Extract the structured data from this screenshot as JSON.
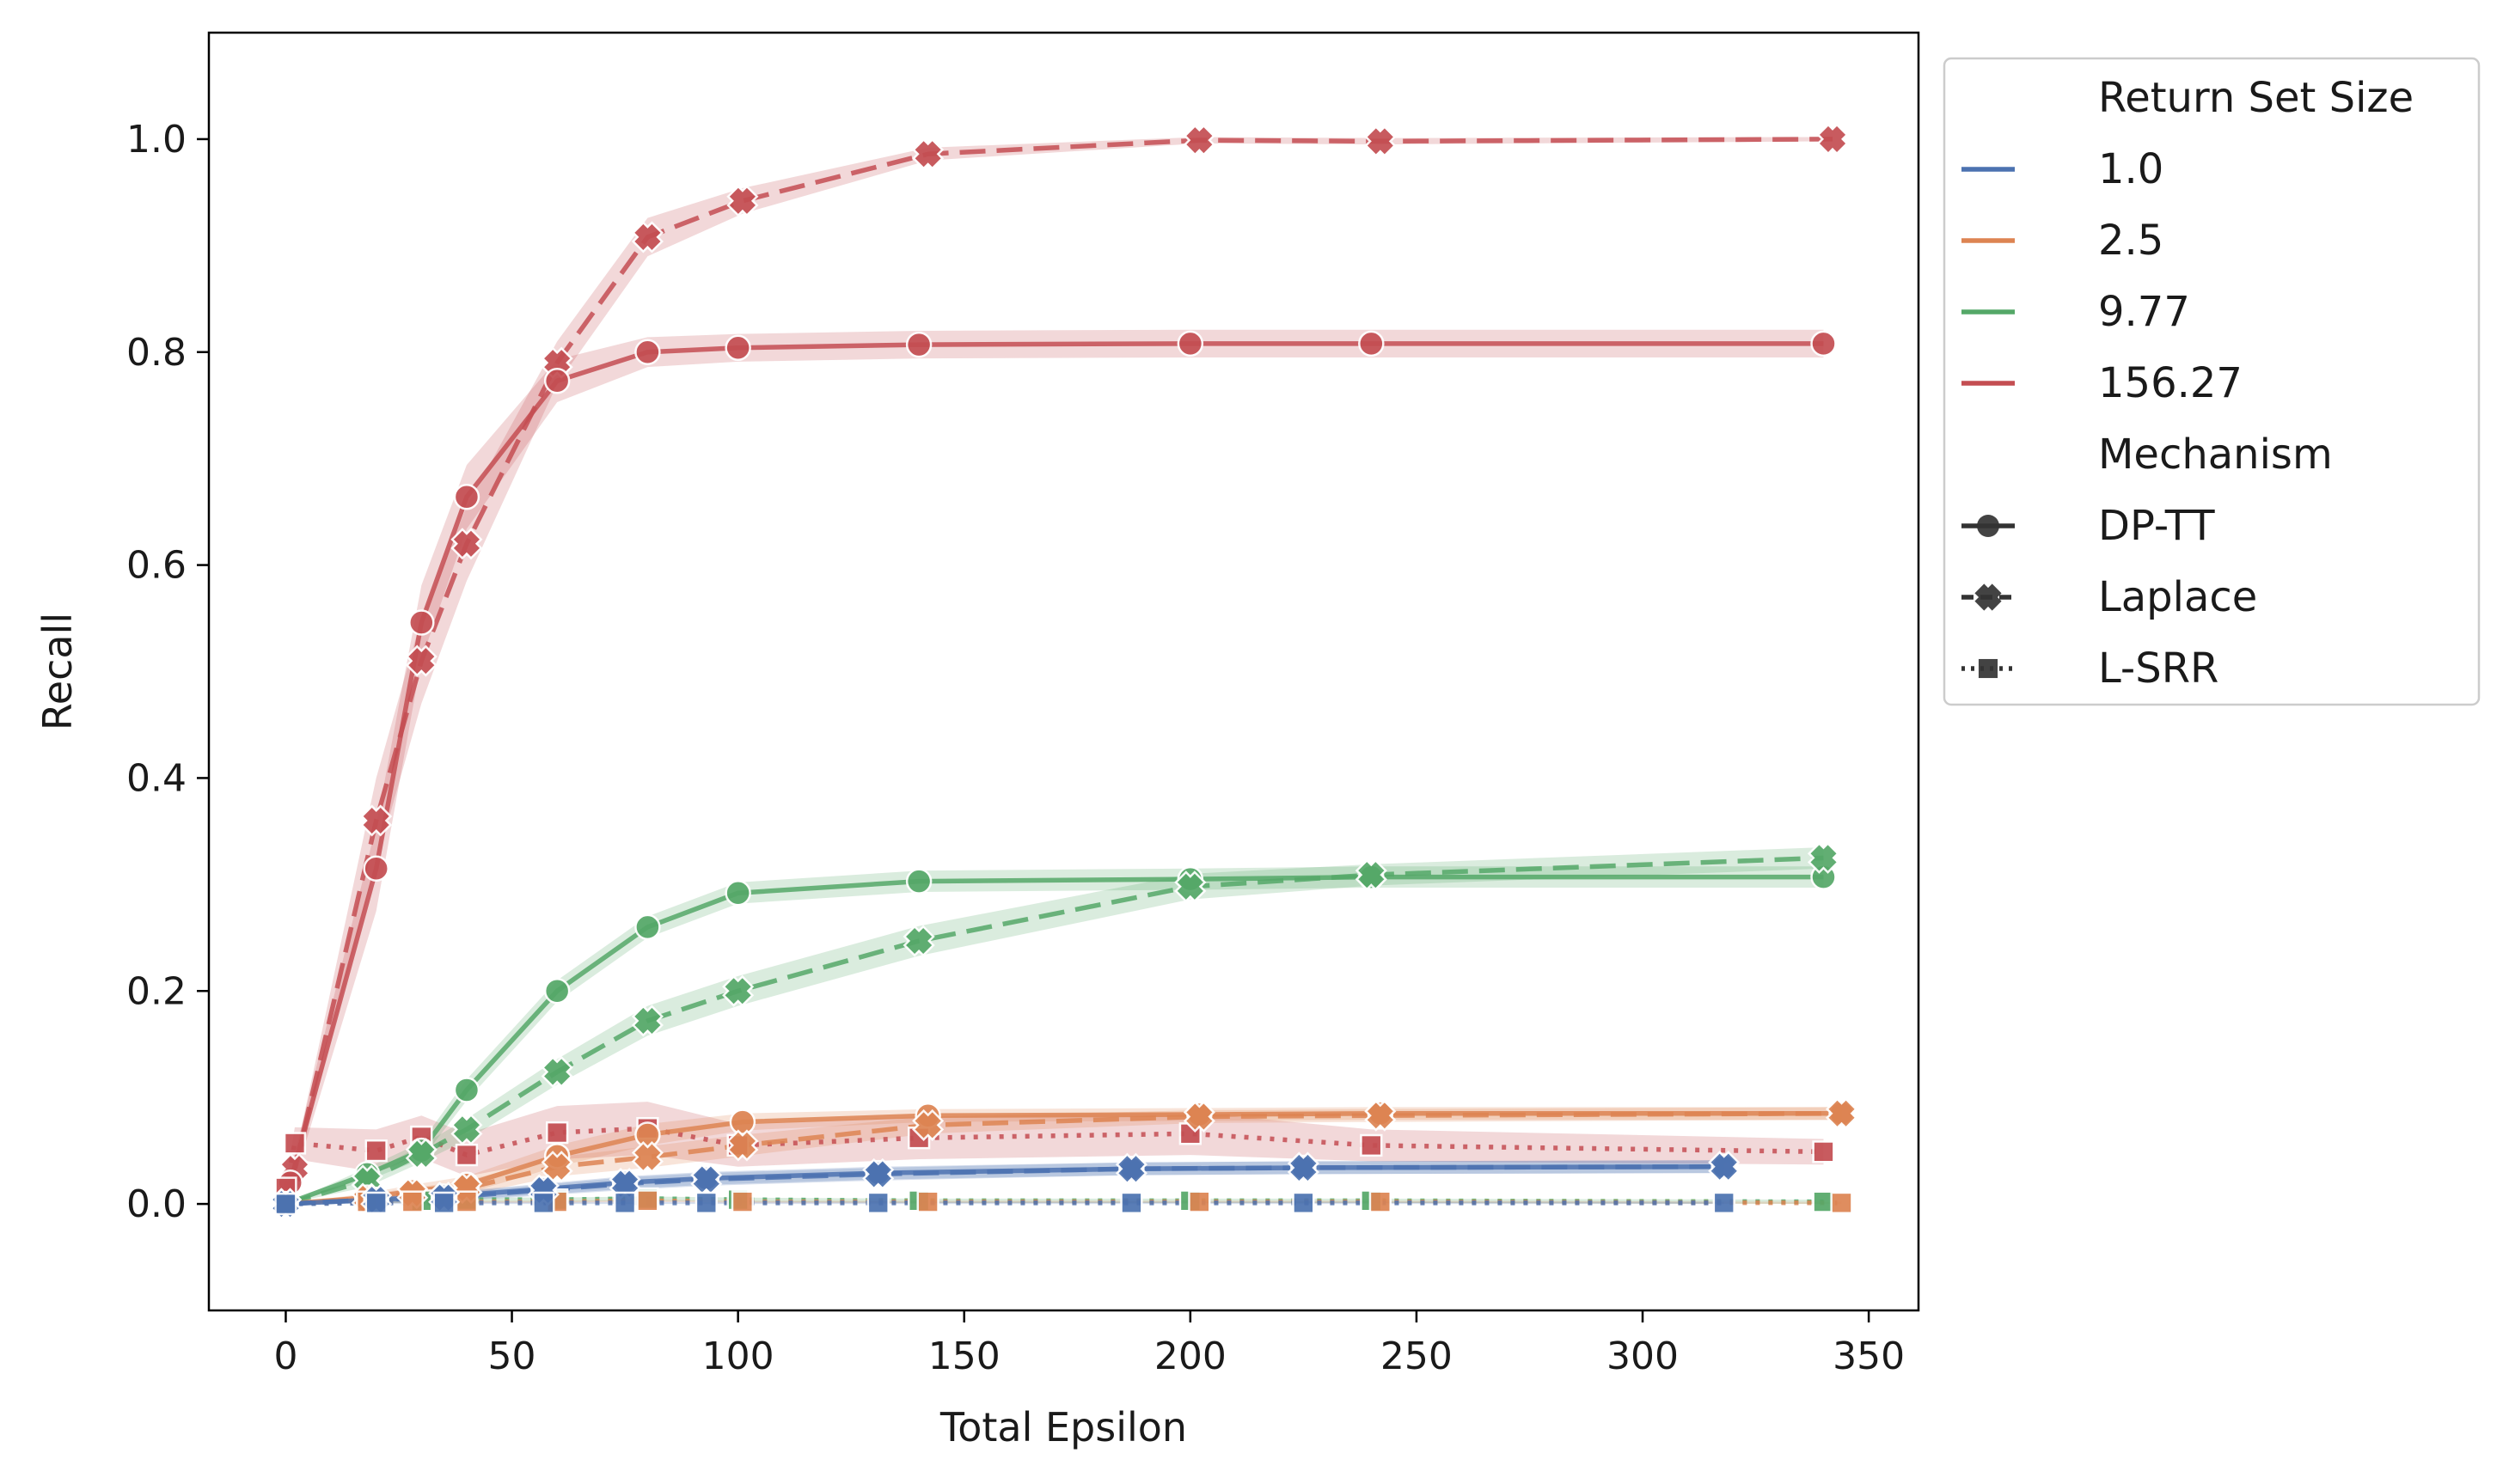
{
  "chart_data": {
    "type": "line",
    "title": "",
    "xlabel": "Total Epsilon",
    "ylabel": "Recall",
    "xlim": [
      -17,
      361
    ],
    "ylim": [
      -0.1,
      1.1
    ],
    "xticks": [
      0,
      50,
      100,
      150,
      200,
      250,
      300,
      350
    ],
    "xtick_labels": [
      "0",
      "50",
      "100",
      "150",
      "200",
      "250",
      "300",
      "350"
    ],
    "yticks": [
      0.0,
      0.2,
      0.4,
      0.6,
      0.8,
      1.0
    ],
    "ytick_labels": [
      "0.0",
      "0.2",
      "0.4",
      "0.6",
      "0.8",
      "1.0"
    ],
    "grid": false,
    "legend": {
      "placement": "outside-right",
      "hue_title": "Return Set Size",
      "style_title": "Mechanism",
      "hue_entries": [
        {
          "label": "1.0",
          "color": "#4c72b0"
        },
        {
          "label": "2.5",
          "color": "#dd8452"
        },
        {
          "label": "9.77",
          "color": "#55a868"
        },
        {
          "label": "156.27",
          "color": "#c44e52"
        }
      ],
      "style_entries": [
        {
          "label": "DP-TT",
          "dash": "solid",
          "marker": "circle"
        },
        {
          "label": "Laplace",
          "dash": "dashed",
          "marker": "x"
        },
        {
          "label": "L-SRR",
          "dash": "dotted",
          "marker": "square"
        }
      ],
      "legend_color": "#333333"
    },
    "series": [
      {
        "size": "156.27",
        "mechanism": "Laplace",
        "color": "#c44e52",
        "x": [
          0,
          2,
          20,
          30,
          40,
          60,
          80,
          101,
          142,
          202,
          242,
          342
        ],
        "y": [
          0.0,
          0.033,
          0.36,
          0.51,
          0.62,
          0.79,
          0.908,
          0.942,
          0.986,
          0.999,
          0.998,
          1.0
        ],
        "band": [
          0.0,
          0.01,
          0.04,
          0.04,
          0.035,
          0.02,
          0.018,
          0.012,
          0.006,
          0.003,
          0.003,
          0.002
        ]
      },
      {
        "size": "156.27",
        "mechanism": "DP-TT",
        "color": "#c44e52",
        "x": [
          1,
          20,
          30,
          40,
          60,
          80,
          100,
          140,
          200,
          240,
          340
        ],
        "y": [
          0.02,
          0.315,
          0.546,
          0.664,
          0.773,
          0.8,
          0.804,
          0.807,
          0.808,
          0.808,
          0.808
        ],
        "band": [
          0.01,
          0.04,
          0.035,
          0.03,
          0.02,
          0.014,
          0.013,
          0.013,
          0.013,
          0.013,
          0.013
        ]
      },
      {
        "size": "156.27",
        "mechanism": "L-SRR",
        "color": "#c44e52",
        "x": [
          0,
          2,
          20,
          30,
          40,
          60,
          80,
          100,
          140,
          200,
          240,
          340
        ],
        "y": [
          0.015,
          0.057,
          0.05,
          0.063,
          0.046,
          0.067,
          0.071,
          0.055,
          0.062,
          0.066,
          0.055,
          0.049
        ],
        "band": [
          0.005,
          0.015,
          0.02,
          0.02,
          0.02,
          0.025,
          0.025,
          0.02,
          0.02,
          0.02,
          0.015,
          0.012
        ]
      },
      {
        "size": "9.77",
        "mechanism": "DP-TT",
        "color": "#55a868",
        "x": [
          0,
          18,
          30,
          40,
          60,
          80,
          100,
          140,
          200,
          240,
          340
        ],
        "y": [
          0.0,
          0.028,
          0.05,
          0.107,
          0.2,
          0.26,
          0.292,
          0.303,
          0.305,
          0.307,
          0.307
        ],
        "band": [
          0.0,
          0.006,
          0.008,
          0.01,
          0.01,
          0.01,
          0.01,
          0.01,
          0.01,
          0.01,
          0.01
        ]
      },
      {
        "size": "9.77",
        "mechanism": "Laplace",
        "color": "#55a868",
        "x": [
          0,
          18,
          30,
          40,
          60,
          80,
          100,
          140,
          200,
          240,
          340
        ],
        "y": [
          0.0,
          0.022,
          0.047,
          0.07,
          0.124,
          0.172,
          0.2,
          0.247,
          0.298,
          0.309,
          0.325
        ],
        "band": [
          0.0,
          0.006,
          0.008,
          0.01,
          0.012,
          0.014,
          0.014,
          0.014,
          0.012,
          0.01,
          0.01
        ]
      },
      {
        "size": "9.77",
        "mechanism": "L-SRR",
        "color": "#55a868",
        "x": [
          0,
          18,
          30,
          40,
          60,
          80,
          100,
          140,
          200,
          240,
          340
        ],
        "y": [
          0.0,
          0.003,
          0.003,
          0.004,
          0.004,
          0.005,
          0.004,
          0.003,
          0.003,
          0.003,
          0.002
        ],
        "band": [
          0.0,
          0.002,
          0.002,
          0.002,
          0.002,
          0.002,
          0.002,
          0.002,
          0.002,
          0.002,
          0.002
        ]
      },
      {
        "size": "2.5",
        "mechanism": "DP-TT",
        "color": "#dd8452",
        "x": [
          0,
          18,
          28,
          40,
          60,
          80,
          101,
          142,
          202,
          242,
          344
        ],
        "y": [
          0.0,
          0.006,
          0.012,
          0.018,
          0.045,
          0.065,
          0.077,
          0.083,
          0.084,
          0.085,
          0.085
        ],
        "band": [
          0.0,
          0.004,
          0.006,
          0.008,
          0.01,
          0.01,
          0.008,
          0.006,
          0.006,
          0.006,
          0.006
        ]
      },
      {
        "size": "2.5",
        "mechanism": "Laplace",
        "color": "#dd8452",
        "x": [
          0,
          18,
          28,
          40,
          60,
          80,
          101,
          142,
          202,
          242,
          344
        ],
        "y": [
          0.0,
          0.005,
          0.01,
          0.015,
          0.035,
          0.044,
          0.055,
          0.074,
          0.082,
          0.083,
          0.085
        ],
        "band": [
          0.0,
          0.004,
          0.005,
          0.007,
          0.009,
          0.01,
          0.01,
          0.008,
          0.006,
          0.006,
          0.006
        ]
      },
      {
        "size": "2.5",
        "mechanism": "L-SRR",
        "color": "#dd8452",
        "x": [
          0,
          18,
          28,
          40,
          60,
          80,
          101,
          142,
          202,
          242,
          344
        ],
        "y": [
          0.0,
          0.002,
          0.002,
          0.002,
          0.002,
          0.003,
          0.002,
          0.002,
          0.002,
          0.002,
          0.001
        ],
        "band": [
          0.0,
          0.001,
          0.001,
          0.001,
          0.001,
          0.001,
          0.001,
          0.001,
          0.001,
          0.001,
          0.001
        ]
      },
      {
        "size": "1.0",
        "mechanism": "DP-TT",
        "color": "#4c72b0",
        "x": [
          0,
          20,
          35,
          57,
          75,
          93,
          131,
          187,
          225,
          318
        ],
        "y": [
          0.0,
          0.004,
          0.007,
          0.014,
          0.02,
          0.024,
          0.029,
          0.033,
          0.034,
          0.035
        ],
        "band": [
          0.0,
          0.003,
          0.004,
          0.005,
          0.006,
          0.006,
          0.006,
          0.006,
          0.006,
          0.006
        ]
      },
      {
        "size": "1.0",
        "mechanism": "Laplace",
        "color": "#4c72b0",
        "x": [
          0,
          20,
          35,
          57,
          75,
          93,
          131,
          187,
          225,
          318
        ],
        "y": [
          0.0,
          0.004,
          0.006,
          0.013,
          0.019,
          0.023,
          0.028,
          0.033,
          0.034,
          0.035
        ],
        "band": [
          0.0,
          0.003,
          0.004,
          0.005,
          0.006,
          0.006,
          0.006,
          0.006,
          0.006,
          0.006
        ]
      },
      {
        "size": "1.0",
        "mechanism": "L-SRR",
        "color": "#4c72b0",
        "x": [
          0,
          20,
          35,
          57,
          75,
          93,
          131,
          187,
          225,
          318
        ],
        "y": [
          0.0,
          0.001,
          0.001,
          0.001,
          0.001,
          0.001,
          0.001,
          0.001,
          0.001,
          0.001
        ],
        "band": [
          0.0,
          0.001,
          0.001,
          0.001,
          0.001,
          0.001,
          0.001,
          0.001,
          0.001,
          0.001
        ]
      }
    ]
  }
}
